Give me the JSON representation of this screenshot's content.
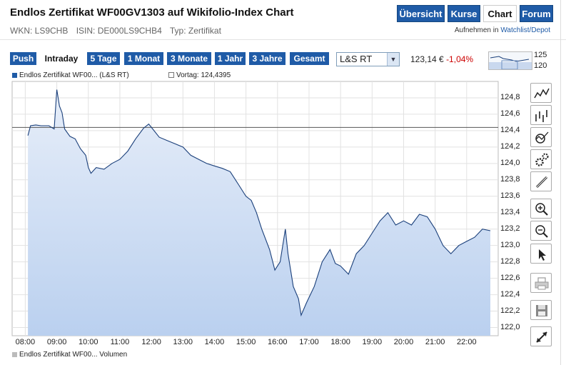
{
  "header": {
    "title": "Endlos Zertifikat WF00GV1303 auf Wikifolio-Index Chart",
    "nav": [
      "Übersicht",
      "Kurse",
      "Chart",
      "Forum"
    ],
    "active_nav": "Chart",
    "wkn": "WKN: LS9CHB",
    "isin": "ISIN: DE000LS9CHB4",
    "typ": "Typ: Zertifikat",
    "watch_prefix": "Aufnehmen in",
    "watch_link": "Watchlist/Depot"
  },
  "toolbar": {
    "push": "Push",
    "intraday": "Intraday",
    "t5": "5 Tage",
    "m1": "1 Monat",
    "m3": "3 Monate",
    "j1": "1 Jahr",
    "j3": "3 Jahre",
    "gesamt": "Gesamt",
    "exchange": "L&S RT",
    "price": "123,14 €",
    "change": "-1,04%",
    "mini_high": "125",
    "mini_low": "120"
  },
  "legend": {
    "series": "Endlos Zertifikat WF00... (L&S RT)",
    "prev": "Vortag: 124,4395",
    "volume": "Endlos Zertifikat WF00... Volumen"
  },
  "colors": {
    "accent": "#1f5ba7",
    "line": "#1a3f7a",
    "fill_top": "#dfe8f6",
    "fill_bottom": "#bcd2f0",
    "down": "#cc0000"
  },
  "tools": [
    "line-chart-icon",
    "ohlc-chart-icon",
    "indicator-icon",
    "settings-gears-icon",
    "draw-pen-icon",
    "zoom-in-icon",
    "zoom-out-icon",
    "cursor-icon",
    "print-icon",
    "save-icon",
    "fullscreen-icon"
  ],
  "chart_data": {
    "type": "area",
    "xlabel": "",
    "ylabel": "",
    "x_ticks": [
      "08:00",
      "09:00",
      "10:00",
      "11:00",
      "12:00",
      "13:00",
      "14:00",
      "15:00",
      "16:00",
      "17:00",
      "18:00",
      "19:00",
      "20:00",
      "21:00",
      "22:00"
    ],
    "y_ticks": [
      "124,8",
      "124,6",
      "124,4",
      "124,2",
      "124,0",
      "123,8",
      "123,6",
      "123,4",
      "123,2",
      "123,0",
      "122,8",
      "122,6",
      "122,4",
      "122,2",
      "122,0"
    ],
    "ylim": [
      121.9,
      125.0
    ],
    "xlim": [
      "07:35",
      "23:00"
    ],
    "reference_line": 124.4395,
    "grid": true,
    "series": [
      {
        "name": "Endlos Zertifikat WF00... (L&S RT)",
        "points": [
          [
            "08:05",
            124.34
          ],
          [
            "08:10",
            124.46
          ],
          [
            "08:20",
            124.47
          ],
          [
            "08:30",
            124.46
          ],
          [
            "08:45",
            124.46
          ],
          [
            "08:55",
            124.42
          ],
          [
            "09:00",
            124.9
          ],
          [
            "09:05",
            124.7
          ],
          [
            "09:10",
            124.62
          ],
          [
            "09:15",
            124.42
          ],
          [
            "09:25",
            124.33
          ],
          [
            "09:35",
            124.3
          ],
          [
            "09:45",
            124.18
          ],
          [
            "09:55",
            124.1
          ],
          [
            "10:00",
            123.95
          ],
          [
            "10:05",
            123.88
          ],
          [
            "10:15",
            123.95
          ],
          [
            "10:30",
            123.93
          ],
          [
            "10:45",
            124.0
          ],
          [
            "11:00",
            124.05
          ],
          [
            "11:15",
            124.15
          ],
          [
            "11:30",
            124.3
          ],
          [
            "11:45",
            124.43
          ],
          [
            "11:55",
            124.48
          ],
          [
            "12:05",
            124.4
          ],
          [
            "12:15",
            124.32
          ],
          [
            "12:30",
            124.28
          ],
          [
            "12:45",
            124.24
          ],
          [
            "13:00",
            124.2
          ],
          [
            "13:15",
            124.1
          ],
          [
            "13:30",
            124.05
          ],
          [
            "13:45",
            124.0
          ],
          [
            "14:00",
            123.97
          ],
          [
            "14:15",
            123.94
          ],
          [
            "14:30",
            123.9
          ],
          [
            "14:45",
            123.75
          ],
          [
            "15:00",
            123.6
          ],
          [
            "15:10",
            123.55
          ],
          [
            "15:20",
            123.4
          ],
          [
            "15:30",
            123.2
          ],
          [
            "15:45",
            122.95
          ],
          [
            "15:55",
            122.7
          ],
          [
            "16:05",
            122.8
          ],
          [
            "16:15",
            123.2
          ],
          [
            "16:20",
            122.9
          ],
          [
            "16:30",
            122.5
          ],
          [
            "16:40",
            122.35
          ],
          [
            "16:45",
            122.15
          ],
          [
            "16:55",
            122.3
          ],
          [
            "17:10",
            122.5
          ],
          [
            "17:25",
            122.8
          ],
          [
            "17:40",
            122.95
          ],
          [
            "17:50",
            122.78
          ],
          [
            "18:00",
            122.75
          ],
          [
            "18:15",
            122.65
          ],
          [
            "18:30",
            122.9
          ],
          [
            "18:45",
            123.0
          ],
          [
            "19:00",
            123.15
          ],
          [
            "19:15",
            123.3
          ],
          [
            "19:30",
            123.4
          ],
          [
            "19:45",
            123.25
          ],
          [
            "20:00",
            123.3
          ],
          [
            "20:15",
            123.25
          ],
          [
            "20:30",
            123.38
          ],
          [
            "20:45",
            123.35
          ],
          [
            "21:00",
            123.2
          ],
          [
            "21:15",
            123.0
          ],
          [
            "21:30",
            122.9
          ],
          [
            "21:45",
            123.0
          ],
          [
            "22:00",
            123.05
          ],
          [
            "22:15",
            123.1
          ],
          [
            "22:30",
            123.2
          ],
          [
            "22:45",
            123.18
          ]
        ]
      }
    ]
  }
}
